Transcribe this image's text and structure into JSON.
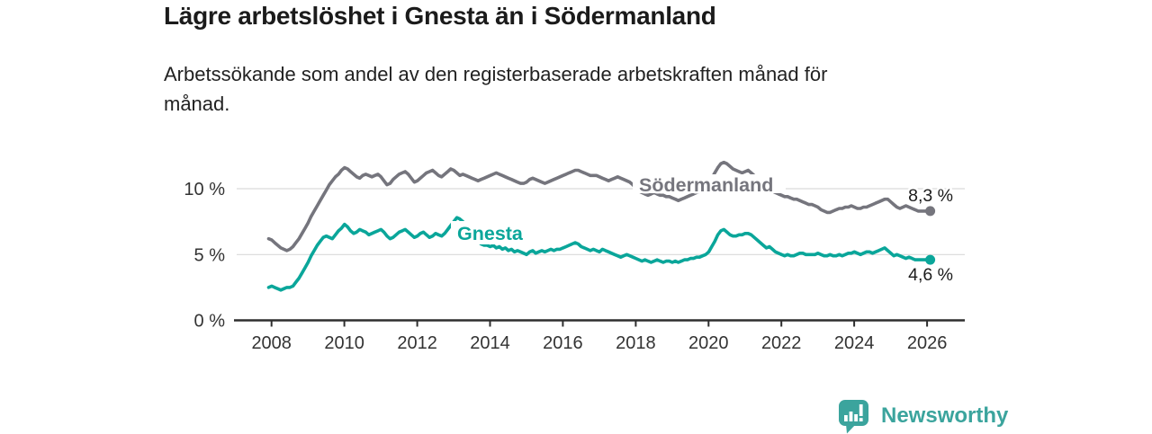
{
  "header": {
    "title": "Lägre arbetslöshet i Gnesta än i Södermanland",
    "subtitle_line1": "Arbetssökande som andel av den registerbaserade arbetskraften månad för",
    "subtitle_line2": "månad."
  },
  "footer": {
    "brand": "Newsworthy",
    "brand_color": "#3ba49d",
    "logo_icon": "bar-chart-speech-bubble-icon"
  },
  "chart_data": {
    "type": "line",
    "title": "Lägre arbetslöshet i Gnesta än i Södermanland",
    "x_unit": "month",
    "x_range": {
      "start": "2008-01",
      "end": "2026-03"
    },
    "x_tick_labels": [
      "2008",
      "2010",
      "2012",
      "2014",
      "2016",
      "2018",
      "2020",
      "2022",
      "2024",
      "2026"
    ],
    "y_ticks": [
      {
        "value": 0,
        "label": "0 %"
      },
      {
        "value": 5,
        "label": "5 %"
      },
      {
        "value": 10,
        "label": "10 %"
      }
    ],
    "ylim": [
      0,
      13
    ],
    "grid": "horizontal-only",
    "legend": "inline-labels",
    "series": [
      {
        "name": "Södermanland",
        "color": "#75757d",
        "end_label": "8,3 %",
        "end_value": 8.3,
        "values": [
          6.2,
          6.1,
          5.9,
          5.7,
          5.5,
          5.4,
          5.3,
          5.4,
          5.6,
          5.9,
          6.2,
          6.6,
          7.0,
          7.4,
          7.9,
          8.3,
          8.7,
          9.1,
          9.5,
          9.9,
          10.3,
          10.6,
          10.9,
          11.1,
          11.4,
          11.6,
          11.5,
          11.3,
          11.1,
          10.9,
          10.8,
          11.0,
          11.1,
          11.0,
          10.9,
          11.0,
          11.1,
          10.9,
          10.6,
          10.3,
          10.4,
          10.7,
          10.9,
          11.1,
          11.2,
          11.3,
          11.1,
          10.8,
          10.5,
          10.6,
          10.8,
          11.0,
          11.2,
          11.3,
          11.4,
          11.2,
          11.0,
          10.9,
          11.1,
          11.3,
          11.5,
          11.4,
          11.2,
          11.0,
          11.1,
          11.0,
          10.9,
          10.8,
          10.7,
          10.6,
          10.7,
          10.8,
          10.9,
          11.0,
          11.1,
          11.2,
          11.1,
          11.0,
          10.9,
          10.8,
          10.7,
          10.6,
          10.5,
          10.4,
          10.4,
          10.5,
          10.7,
          10.8,
          10.7,
          10.6,
          10.5,
          10.4,
          10.5,
          10.6,
          10.7,
          10.8,
          10.9,
          11.0,
          11.1,
          11.2,
          11.3,
          11.4,
          11.4,
          11.3,
          11.2,
          11.1,
          11.0,
          11.0,
          11.0,
          10.9,
          10.8,
          10.7,
          10.6,
          10.7,
          10.8,
          10.9,
          10.8,
          10.7,
          10.6,
          10.5,
          10.3,
          10.0,
          9.8,
          9.7,
          9.6,
          9.5,
          9.6,
          9.7,
          9.6,
          9.5,
          9.5,
          9.4,
          9.4,
          9.3,
          9.2,
          9.1,
          9.2,
          9.3,
          9.4,
          9.5,
          9.6,
          9.7,
          9.8,
          9.9,
          10.1,
          10.4,
          10.8,
          11.2,
          11.6,
          11.9,
          12.0,
          11.9,
          11.7,
          11.5,
          11.4,
          11.3,
          11.2,
          11.3,
          11.4,
          11.2,
          11.0,
          10.8,
          10.6,
          10.4,
          10.2,
          10.0,
          9.8,
          9.7,
          9.6,
          9.5,
          9.4,
          9.4,
          9.3,
          9.2,
          9.2,
          9.1,
          9.0,
          8.9,
          8.8,
          8.8,
          8.7,
          8.6,
          8.4,
          8.3,
          8.2,
          8.2,
          8.3,
          8.4,
          8.5,
          8.5,
          8.6,
          8.6,
          8.7,
          8.6,
          8.5,
          8.5,
          8.6,
          8.6,
          8.7,
          8.8,
          8.9,
          9.0,
          9.1,
          9.2,
          9.2,
          9.0,
          8.8,
          8.6,
          8.5,
          8.6,
          8.7,
          8.6,
          8.5,
          8.4,
          8.3,
          8.3,
          8.3,
          8.3,
          8.3
        ]
      },
      {
        "name": "Gnesta",
        "color": "#0aa69a",
        "end_label": "4,6 %",
        "end_value": 4.6,
        "values": [
          2.5,
          2.6,
          2.5,
          2.4,
          2.3,
          2.4,
          2.5,
          2.5,
          2.6,
          2.9,
          3.2,
          3.6,
          4.0,
          4.4,
          4.9,
          5.3,
          5.7,
          6.0,
          6.3,
          6.4,
          6.3,
          6.2,
          6.5,
          6.8,
          7.0,
          7.3,
          7.1,
          6.8,
          6.6,
          6.7,
          6.9,
          6.8,
          6.7,
          6.5,
          6.6,
          6.7,
          6.8,
          6.9,
          6.7,
          6.4,
          6.2,
          6.3,
          6.5,
          6.7,
          6.8,
          6.9,
          6.7,
          6.5,
          6.3,
          6.4,
          6.6,
          6.7,
          6.5,
          6.3,
          6.4,
          6.6,
          6.5,
          6.4,
          6.6,
          6.9,
          7.2,
          7.5,
          7.8,
          7.7,
          7.5,
          7.2,
          6.9,
          6.6,
          6.3,
          6.0,
          5.8,
          5.7,
          5.7,
          5.6,
          5.7,
          5.5,
          5.6,
          5.4,
          5.5,
          5.3,
          5.4,
          5.2,
          5.3,
          5.2,
          5.1,
          5.0,
          5.2,
          5.3,
          5.1,
          5.2,
          5.3,
          5.2,
          5.3,
          5.4,
          5.3,
          5.4,
          5.4,
          5.5,
          5.6,
          5.7,
          5.8,
          5.9,
          5.8,
          5.6,
          5.5,
          5.4,
          5.3,
          5.4,
          5.3,
          5.2,
          5.4,
          5.3,
          5.2,
          5.1,
          5.0,
          4.9,
          4.8,
          4.9,
          5.0,
          4.9,
          4.8,
          4.7,
          4.6,
          4.5,
          4.6,
          4.5,
          4.4,
          4.5,
          4.6,
          4.5,
          4.4,
          4.5,
          4.5,
          4.4,
          4.5,
          4.4,
          4.5,
          4.6,
          4.6,
          4.7,
          4.7,
          4.8,
          4.8,
          4.9,
          5.0,
          5.2,
          5.6,
          6.0,
          6.5,
          6.8,
          6.9,
          6.7,
          6.5,
          6.4,
          6.4,
          6.5,
          6.5,
          6.6,
          6.6,
          6.5,
          6.3,
          6.1,
          5.9,
          5.7,
          5.5,
          5.6,
          5.4,
          5.2,
          5.1,
          5.0,
          4.9,
          5.0,
          4.9,
          4.9,
          5.0,
          5.1,
          5.1,
          5.0,
          5.0,
          5.0,
          5.0,
          5.1,
          5.0,
          4.9,
          4.9,
          5.0,
          4.9,
          4.9,
          5.0,
          4.9,
          5.0,
          5.1,
          5.1,
          5.2,
          5.1,
          5.0,
          5.1,
          5.2,
          5.2,
          5.1,
          5.2,
          5.3,
          5.4,
          5.5,
          5.3,
          5.1,
          4.9,
          5.0,
          4.9,
          4.8,
          4.7,
          4.8,
          4.7,
          4.6,
          4.6,
          4.6,
          4.6,
          4.6,
          4.6
        ]
      }
    ]
  }
}
